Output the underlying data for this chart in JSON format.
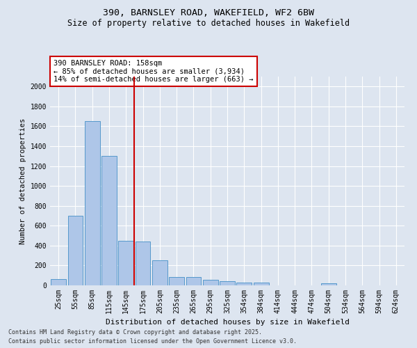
{
  "title1": "390, BARNSLEY ROAD, WAKEFIELD, WF2 6BW",
  "title2": "Size of property relative to detached houses in Wakefield",
  "xlabel": "Distribution of detached houses by size in Wakefield",
  "ylabel": "Number of detached properties",
  "categories": [
    "25sqm",
    "55sqm",
    "85sqm",
    "115sqm",
    "145sqm",
    "175sqm",
    "205sqm",
    "235sqm",
    "265sqm",
    "295sqm",
    "325sqm",
    "354sqm",
    "384sqm",
    "414sqm",
    "444sqm",
    "474sqm",
    "504sqm",
    "534sqm",
    "564sqm",
    "594sqm",
    "624sqm"
  ],
  "values": [
    65,
    700,
    1650,
    1300,
    445,
    440,
    250,
    85,
    85,
    55,
    45,
    30,
    25,
    0,
    0,
    0,
    20,
    0,
    0,
    0,
    0
  ],
  "bar_color": "#aec6e8",
  "bar_edge_color": "#5599cc",
  "vline_x_index": 4.5,
  "vline_color": "#cc0000",
  "annotation_line1": "390 BARNSLEY ROAD: 158sqm",
  "annotation_line2": "← 85% of detached houses are smaller (3,934)",
  "annotation_line3": "14% of semi-detached houses are larger (663) →",
  "annotation_box_color": "#cc0000",
  "footer1": "Contains HM Land Registry data © Crown copyright and database right 2025.",
  "footer2": "Contains public sector information licensed under the Open Government Licence v3.0.",
  "ylim_max": 2100,
  "yticks": [
    0,
    200,
    400,
    600,
    800,
    1000,
    1200,
    1400,
    1600,
    1800,
    2000
  ],
  "background_color": "#dde5f0",
  "plot_bg_color": "#dde5f0",
  "grid_color": "#ffffff",
  "title_fontsize": 9.5,
  "subtitle_fontsize": 8.5,
  "tick_fontsize": 7,
  "ylabel_fontsize": 7.5,
  "xlabel_fontsize": 8,
  "footer_fontsize": 6,
  "annotation_fontsize": 7.5
}
